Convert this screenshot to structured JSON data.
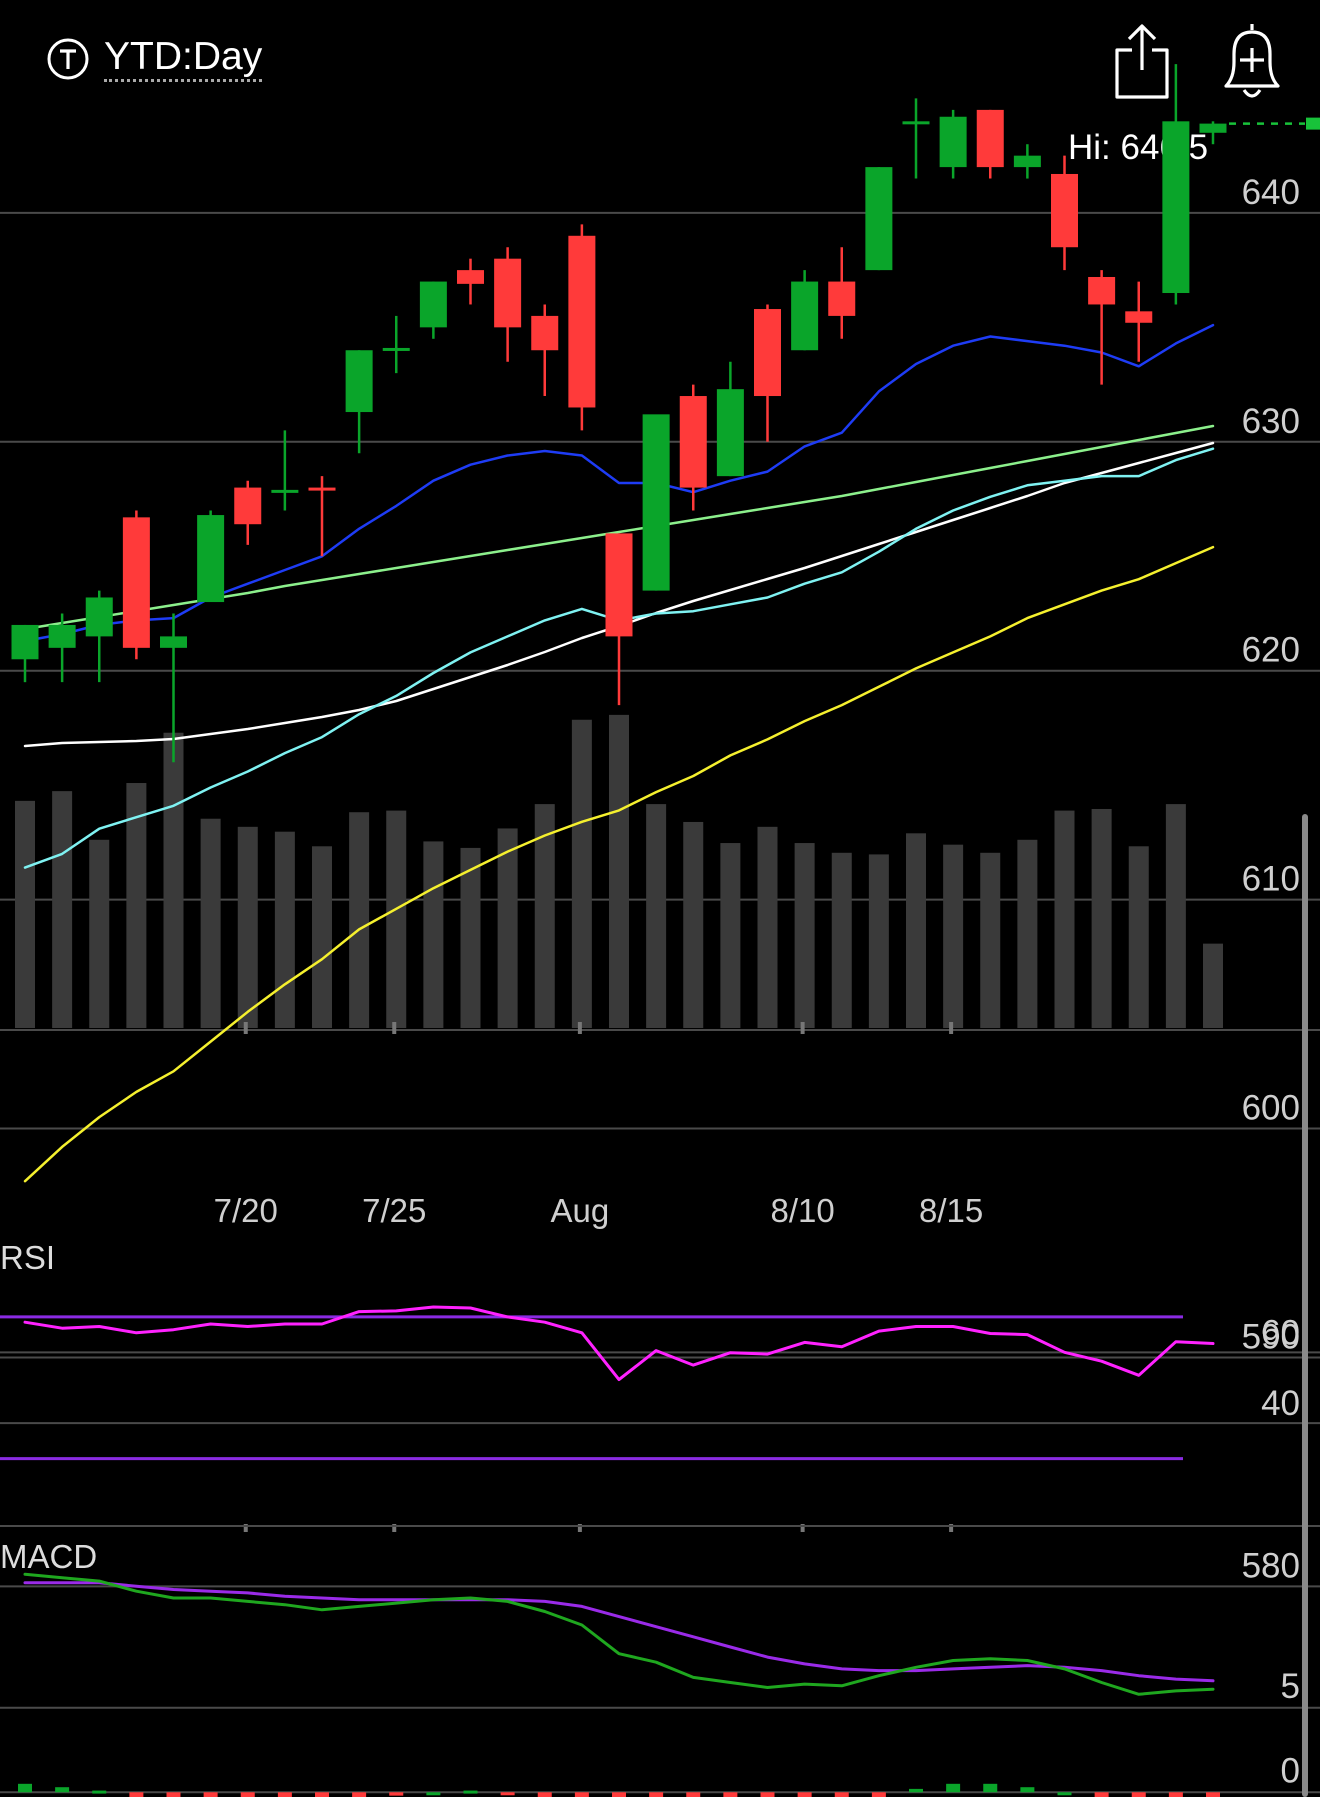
{
  "header": {
    "timeframe_label": "YTD:Day",
    "icons": {
      "timeframe": "ticker-t-icon",
      "share": "share-icon",
      "alert": "add-alert-bell-icon"
    }
  },
  "colors": {
    "background": "#000000",
    "gridline": "#4a4a4a",
    "up_candle": "#0aa52a",
    "down_candle": "#ff3a3a",
    "ma_fast": "#1e3cf5",
    "ma_mid": "#7ff2f2",
    "ma_slow": "#f5f02e",
    "volume_bar": "#3a3a3a",
    "volume_ma_short": "#ffffff",
    "volume_ma_long": "#8cf08c",
    "rsi_line": "#ff22ff",
    "rsi_band": "#8a2be2",
    "macd_line": "#1fa71f",
    "macd_signal": "#9a2be8",
    "last_price_dash": "#18c23a"
  },
  "chart_data": [
    {
      "type": "candlestick",
      "title": "",
      "hi_label": "Hi: 646.5",
      "y_ticks": [
        640,
        630,
        620,
        610,
        600,
        590,
        580
      ],
      "ylim": [
        570.8,
        649.3
      ],
      "x_tick_labels": [
        {
          "label": "7/20",
          "index": 6
        },
        {
          "label": "7/25",
          "index": 10
        },
        {
          "label": "Aug",
          "index": 15
        },
        {
          "label": "8/10",
          "index": 21
        },
        {
          "label": "8/15",
          "index": 25
        }
      ],
      "last_price_dashed": 643.9,
      "candles": [
        {
          "o": 620.5,
          "h": 622.0,
          "l": 619.5,
          "c": 622.0
        },
        {
          "o": 621.0,
          "h": 622.5,
          "l": 619.5,
          "c": 622.0
        },
        {
          "o": 621.5,
          "h": 623.5,
          "l": 619.5,
          "c": 623.2
        },
        {
          "o": 626.7,
          "h": 627.0,
          "l": 620.5,
          "c": 621.0
        },
        {
          "o": 621.0,
          "h": 622.5,
          "l": 616.0,
          "c": 621.5
        },
        {
          "o": 623.0,
          "h": 627.0,
          "l": 623.0,
          "c": 626.8
        },
        {
          "o": 628.0,
          "h": 628.3,
          "l": 625.5,
          "c": 626.4
        },
        {
          "o": 627.9,
          "h": 630.5,
          "l": 627.0,
          "c": 627.9
        },
        {
          "o": 628.0,
          "h": 628.5,
          "l": 625.0,
          "c": 627.9
        },
        {
          "o": 631.3,
          "h": 634.0,
          "l": 629.5,
          "c": 634.0
        },
        {
          "o": 634.0,
          "h": 635.5,
          "l": 633.0,
          "c": 634.1
        },
        {
          "o": 635.0,
          "h": 637.0,
          "l": 634.5,
          "c": 637.0
        },
        {
          "o": 637.5,
          "h": 638.0,
          "l": 636.0,
          "c": 636.9
        },
        {
          "o": 638.0,
          "h": 638.5,
          "l": 633.5,
          "c": 635.0
        },
        {
          "o": 635.5,
          "h": 636.0,
          "l": 632.0,
          "c": 634.0
        },
        {
          "o": 639.0,
          "h": 639.5,
          "l": 630.5,
          "c": 631.5
        },
        {
          "o": 626.0,
          "h": 626.0,
          "l": 618.5,
          "c": 621.5
        },
        {
          "o": 623.5,
          "h": 630.5,
          "l": 623.5,
          "c": 631.2
        },
        {
          "o": 632.0,
          "h": 632.5,
          "l": 627.0,
          "c": 628.0
        },
        {
          "o": 628.5,
          "h": 633.5,
          "l": 628.5,
          "c": 632.3
        },
        {
          "o": 635.8,
          "h": 636.0,
          "l": 630.0,
          "c": 632.0
        },
        {
          "o": 634.0,
          "h": 637.5,
          "l": 634.0,
          "c": 637.0
        },
        {
          "o": 637.0,
          "h": 638.5,
          "l": 634.5,
          "c": 635.5
        },
        {
          "o": 637.5,
          "h": 642.0,
          "l": 637.5,
          "c": 642.0
        },
        {
          "o": 644.0,
          "h": 645.0,
          "l": 641.5,
          "c": 644.0
        },
        {
          "o": 642.0,
          "h": 644.5,
          "l": 641.5,
          "c": 644.2
        },
        {
          "o": 644.5,
          "h": 644.5,
          "l": 641.5,
          "c": 642.0
        },
        {
          "o": 642.0,
          "h": 643.0,
          "l": 641.5,
          "c": 642.5
        },
        {
          "o": 641.7,
          "h": 642.5,
          "l": 637.5,
          "c": 638.5
        },
        {
          "o": 637.2,
          "h": 637.5,
          "l": 632.5,
          "c": 636.0
        },
        {
          "o": 635.7,
          "h": 637.0,
          "l": 633.5,
          "c": 635.2
        },
        {
          "o": 636.5,
          "h": 646.5,
          "l": 636.0,
          "c": 644.0
        },
        {
          "o": 643.5,
          "h": 644.0,
          "l": 643.0,
          "c": 643.9
        }
      ],
      "ma_fast": [
        621.3,
        621.6,
        622.0,
        622.2,
        622.3,
        623.2,
        623.8,
        624.4,
        625.0,
        626.2,
        627.2,
        628.3,
        629.0,
        629.4,
        629.6,
        629.4,
        628.2,
        628.2,
        627.8,
        628.3,
        628.7,
        629.8,
        630.4,
        632.2,
        633.4,
        634.2,
        634.6,
        634.4,
        634.2,
        633.9,
        633.3,
        634.3,
        635.1
      ],
      "ma_mid": [
        611.4,
        612.0,
        613.1,
        613.6,
        614.1,
        614.9,
        615.6,
        616.4,
        617.1,
        618.1,
        618.9,
        619.9,
        620.8,
        621.5,
        622.2,
        622.7,
        622.2,
        622.5,
        622.6,
        622.9,
        623.2,
        623.8,
        624.3,
        625.2,
        626.2,
        627.0,
        627.6,
        628.1,
        628.3,
        628.5,
        628.5,
        629.2,
        629.7
      ],
      "ma_slow": [
        597.7,
        599.2,
        600.5,
        601.6,
        602.5,
        603.8,
        605.1,
        606.3,
        607.4,
        608.7,
        609.6,
        610.5,
        611.3,
        612.1,
        612.8,
        613.4,
        613.9,
        614.7,
        615.4,
        616.3,
        617.0,
        617.8,
        618.5,
        619.3,
        620.1,
        620.8,
        621.5,
        622.3,
        622.9,
        623.5,
        624.0,
        624.7,
        625.4
      ],
      "volume_panel_top": 690,
      "volume_panel_bottom": 1028,
      "volume": [
        590,
        596,
        566,
        601,
        632,
        579,
        574,
        571,
        562,
        583,
        584,
        565,
        561,
        573,
        588,
        640,
        643,
        588,
        577,
        564,
        574,
        564,
        558,
        557,
        570,
        563,
        558,
        566,
        584,
        585,
        562,
        588,
        502
      ],
      "volume_ma_short": [
        282,
        285,
        286,
        287,
        289,
        294,
        299,
        305,
        311,
        318,
        327,
        339,
        351,
        363,
        376,
        390,
        402,
        415,
        427,
        438,
        449,
        460,
        472,
        484,
        496,
        508,
        520,
        532,
        545,
        555,
        565,
        575,
        585
      ],
      "volume_ma_long": [
        399,
        405,
        411,
        417,
        423,
        429,
        435,
        442,
        448,
        454,
        460,
        466,
        472,
        478,
        484,
        490,
        496,
        502,
        508,
        514,
        520,
        526,
        532,
        539,
        546,
        553,
        560,
        567,
        574,
        581,
        588,
        595,
        602
      ]
    },
    {
      "type": "line",
      "title": "RSI",
      "y_ticks": [
        60,
        40
      ],
      "bands": [
        70,
        30
      ],
      "ylim": [
        10.4,
        95.1
      ],
      "values": [
        68.5,
        66.8,
        67.3,
        65.5,
        66.4,
        68.0,
        67.3,
        68.0,
        68.0,
        71.5,
        71.7,
        72.8,
        72.5,
        70.0,
        68.5,
        65.5,
        52.3,
        60.5,
        56.4,
        59.9,
        59.5,
        62.8,
        61.6,
        66.0,
        67.3,
        67.3,
        65.3,
        65.0,
        60.0,
        57.5,
        53.5,
        63.0,
        62.5
      ]
    },
    {
      "type": "line",
      "title": "MACD",
      "y_ticks": [
        5,
        0
      ],
      "ylim": [
        -0.28,
        17.3
      ],
      "macd": [
        12.9,
        12.7,
        12.5,
        11.9,
        11.5,
        11.5,
        11.3,
        11.1,
        10.8,
        11.0,
        11.2,
        11.4,
        11.5,
        11.3,
        10.7,
        9.9,
        8.2,
        7.7,
        6.8,
        6.5,
        6.2,
        6.4,
        6.3,
        6.9,
        7.4,
        7.8,
        7.9,
        7.8,
        7.3,
        6.5,
        5.8,
        6.0,
        6.1
      ],
      "signal": [
        12.4,
        12.4,
        12.4,
        12.2,
        12.0,
        11.9,
        11.8,
        11.6,
        11.5,
        11.4,
        11.4,
        11.4,
        11.4,
        11.4,
        11.3,
        11.0,
        10.4,
        9.8,
        9.2,
        8.6,
        8.0,
        7.6,
        7.3,
        7.2,
        7.2,
        7.3,
        7.4,
        7.5,
        7.4,
        7.2,
        6.9,
        6.7,
        6.6
      ],
      "histogram": [
        0.5,
        0.3,
        0.1,
        -0.3,
        -0.5,
        -0.4,
        -0.5,
        -0.5,
        -0.7,
        -0.4,
        -0.2,
        0.0,
        0.1,
        -0.1,
        -0.6,
        -1.1,
        -2.2,
        -2.1,
        -2.4,
        -2.1,
        -1.8,
        -1.2,
        -1.0,
        -0.3,
        0.2,
        0.5,
        0.5,
        0.3,
        0.0,
        -0.7,
        -1.1,
        -0.7,
        -0.5
      ]
    }
  ]
}
